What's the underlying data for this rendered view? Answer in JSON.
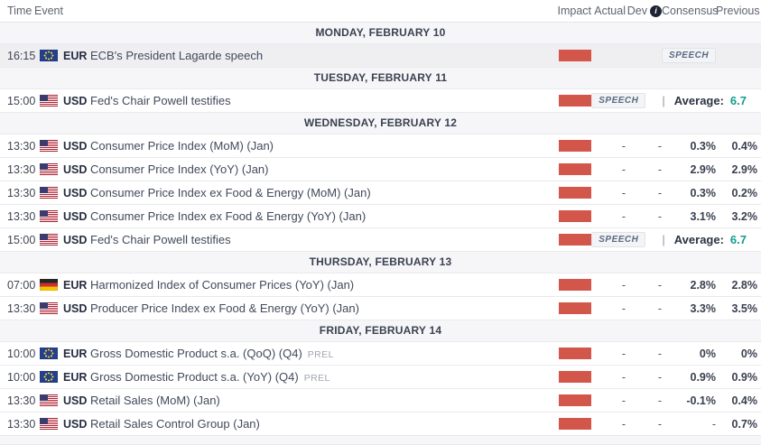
{
  "colors": {
    "impact_high": "#d2574a",
    "accent_teal": "#169c8d",
    "day_row_bg": "#f6f6f9",
    "past_row_bg": "#efeff2"
  },
  "header": {
    "time": "Time",
    "event": "Event",
    "impact": "Impact",
    "actual": "Actual",
    "dev": "Dev",
    "info_icon": "i",
    "consensus": "Consensus",
    "previous": "Previous"
  },
  "rows": [
    {
      "type": "day",
      "label": "MONDAY, FEBRUARY 10"
    },
    {
      "type": "event",
      "time": "16:15",
      "flag": "eu",
      "currency": "EUR",
      "event": "ECB's President Lagarde speech",
      "impact": "high",
      "past": true,
      "badge": "SPEECH"
    },
    {
      "type": "day",
      "label": "TUESDAY, FEBRUARY 11"
    },
    {
      "type": "event",
      "time": "15:00",
      "flag": "us",
      "currency": "USD",
      "event": "Fed's Chair Powell testifies",
      "impact": "high",
      "badge": "SPEECH",
      "divider": "|",
      "average_label": "Average:",
      "average_value": "6.7"
    },
    {
      "type": "day",
      "label": "WEDNESDAY, FEBRUARY 12"
    },
    {
      "type": "event",
      "time": "13:30",
      "flag": "us",
      "currency": "USD",
      "event": "Consumer Price Index (MoM) (Jan)",
      "impact": "high",
      "actual": "-",
      "dev": "-",
      "consensus": "0.3%",
      "previous": "0.4%"
    },
    {
      "type": "event",
      "time": "13:30",
      "flag": "us",
      "currency": "USD",
      "event": "Consumer Price Index (YoY) (Jan)",
      "impact": "high",
      "actual": "-",
      "dev": "-",
      "consensus": "2.9%",
      "previous": "2.9%"
    },
    {
      "type": "event",
      "time": "13:30",
      "flag": "us",
      "currency": "USD",
      "event": "Consumer Price Index ex Food & Energy (MoM) (Jan)",
      "impact": "high",
      "actual": "-",
      "dev": "-",
      "consensus": "0.3%",
      "previous": "0.2%"
    },
    {
      "type": "event",
      "time": "13:30",
      "flag": "us",
      "currency": "USD",
      "event": "Consumer Price Index ex Food & Energy (YoY) (Jan)",
      "impact": "high",
      "actual": "-",
      "dev": "-",
      "consensus": "3.1%",
      "previous": "3.2%"
    },
    {
      "type": "event",
      "time": "15:00",
      "flag": "us",
      "currency": "USD",
      "event": "Fed's Chair Powell testifies",
      "impact": "high",
      "badge": "SPEECH",
      "divider": "|",
      "average_label": "Average:",
      "average_value": "6.7"
    },
    {
      "type": "day",
      "label": "THURSDAY, FEBRUARY 13"
    },
    {
      "type": "event",
      "time": "07:00",
      "flag": "de",
      "currency": "EUR",
      "event": "Harmonized Index of Consumer Prices (YoY) (Jan)",
      "impact": "high",
      "actual": "-",
      "dev": "-",
      "consensus": "2.8%",
      "previous": "2.8%"
    },
    {
      "type": "event",
      "time": "13:30",
      "flag": "us",
      "currency": "USD",
      "event": "Producer Price Index ex Food & Energy (YoY) (Jan)",
      "impact": "high",
      "actual": "-",
      "dev": "-",
      "consensus": "3.3%",
      "previous": "3.5%"
    },
    {
      "type": "day",
      "label": "FRIDAY, FEBRUARY 14"
    },
    {
      "type": "event",
      "time": "10:00",
      "flag": "eu",
      "currency": "EUR",
      "event": "Gross Domestic Product s.a. (QoQ) (Q4)",
      "suffix": "PREL",
      "impact": "high",
      "actual": "-",
      "dev": "-",
      "consensus": "0%",
      "previous": "0%"
    },
    {
      "type": "event",
      "time": "10:00",
      "flag": "eu",
      "currency": "EUR",
      "event": "Gross Domestic Product s.a. (YoY) (Q4)",
      "suffix": "PREL",
      "impact": "high",
      "actual": "-",
      "dev": "-",
      "consensus": "0.9%",
      "previous": "0.9%"
    },
    {
      "type": "event",
      "time": "13:30",
      "flag": "us",
      "currency": "USD",
      "event": "Retail Sales (MoM) (Jan)",
      "impact": "high",
      "actual": "-",
      "dev": "-",
      "consensus": "-0.1%",
      "previous": "0.4%"
    },
    {
      "type": "event",
      "time": "13:30",
      "flag": "us",
      "currency": "USD",
      "event": "Retail Sales Control Group (Jan)",
      "impact": "high",
      "actual": "-",
      "dev": "-",
      "consensus": "-",
      "previous": "0.7%"
    }
  ]
}
